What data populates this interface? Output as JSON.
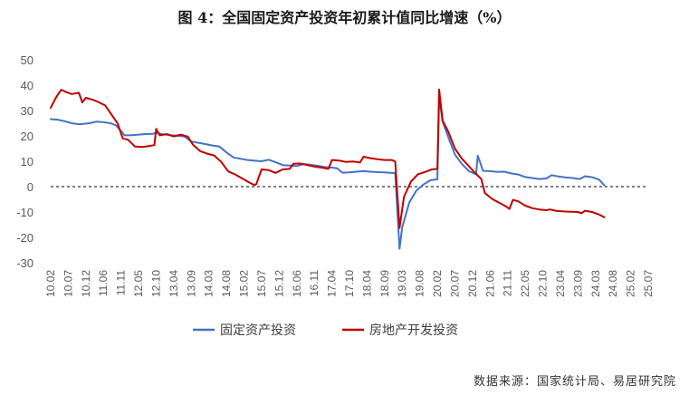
{
  "chart_data": {
    "type": "line",
    "title": "图 4：全国固定资产投资年初累计值同比增速（%）",
    "source": "数据来源：国家统计局、易居研究院",
    "ylim": [
      -30,
      50
    ],
    "yticks": [
      "50",
      "40",
      "30",
      "20",
      "10",
      "0",
      "-10",
      "-20",
      "-30"
    ],
    "xticks": [
      "10.02",
      "10.07",
      "10.12",
      "11.06",
      "11.11",
      "12.05",
      "12.10",
      "13.04",
      "13.09",
      "14.03",
      "14.08",
      "15.02",
      "15.07",
      "15.12",
      "16.06",
      "16.11",
      "17.04",
      "17.10",
      "18.04",
      "18.09",
      "19.03",
      "19.08",
      "20.02",
      "20.07",
      "20.12",
      "21.06",
      "21.11",
      "22.05",
      "22.10",
      "23.04",
      "23.09",
      "24.03",
      "24.08",
      "25.02",
      "25.07"
    ],
    "zero_line": "dashed",
    "legend_position": "bottom",
    "series": [
      {
        "name": "固定资产投资",
        "color": "#4472c4",
        "points": [
          [
            0,
            26.6
          ],
          [
            0.4,
            26.4
          ],
          [
            0.8,
            25.8
          ],
          [
            1.2,
            25.0
          ],
          [
            1.6,
            24.6
          ],
          [
            1.9,
            24.8
          ],
          [
            2.2,
            25.0
          ],
          [
            2.6,
            25.6
          ],
          [
            3.0,
            25.4
          ],
          [
            3.4,
            25.0
          ],
          [
            3.7,
            24.2
          ],
          [
            4.0,
            22.0
          ],
          [
            4.2,
            20.2
          ],
          [
            4.6,
            20.3
          ],
          [
            5.0,
            20.5
          ],
          [
            5.4,
            20.7
          ],
          [
            5.8,
            20.8
          ],
          [
            6.0,
            21.2
          ],
          [
            6.4,
            20.6
          ],
          [
            6.8,
            20.3
          ],
          [
            7.2,
            20.1
          ],
          [
            7.6,
            19.8
          ],
          [
            8.0,
            17.8
          ],
          [
            8.4,
            17.3
          ],
          [
            8.8,
            16.8
          ],
          [
            9.2,
            16.2
          ],
          [
            9.6,
            15.8
          ],
          [
            10.0,
            13.5
          ],
          [
            10.4,
            11.5
          ],
          [
            10.8,
            11.0
          ],
          [
            11.2,
            10.5
          ],
          [
            11.6,
            10.2
          ],
          [
            12.0,
            10.0
          ],
          [
            12.4,
            10.6
          ],
          [
            12.8,
            9.6
          ],
          [
            13.2,
            8.5
          ],
          [
            13.6,
            8.3
          ],
          [
            14.0,
            8.1
          ],
          [
            14.4,
            8.9
          ],
          [
            14.8,
            8.6
          ],
          [
            15.2,
            8.2
          ],
          [
            15.6,
            7.7
          ],
          [
            16.0,
            7.5
          ],
          [
            16.3,
            7.2
          ],
          [
            16.6,
            5.5
          ],
          [
            17.0,
            5.6
          ],
          [
            17.4,
            5.9
          ],
          [
            17.8,
            6.1
          ],
          [
            18.2,
            5.9
          ],
          [
            18.6,
            5.7
          ],
          [
            19.0,
            5.6
          ],
          [
            19.4,
            5.4
          ],
          [
            19.6,
            5.4
          ],
          [
            19.85,
            -24.5
          ],
          [
            20.0,
            -16.1
          ],
          [
            20.4,
            -6.3
          ],
          [
            20.8,
            -1.6
          ],
          [
            21.2,
            0.8
          ],
          [
            21.6,
            2.5
          ],
          [
            22.0,
            2.9
          ],
          [
            22.1,
            35.0
          ],
          [
            22.3,
            25.6
          ],
          [
            22.6,
            19.9
          ],
          [
            23.0,
            12.6
          ],
          [
            23.4,
            8.9
          ],
          [
            23.8,
            6.1
          ],
          [
            24.2,
            4.9
          ],
          [
            24.3,
            12.2
          ],
          [
            24.6,
            6.2
          ],
          [
            25.0,
            6.1
          ],
          [
            25.4,
            5.8
          ],
          [
            25.8,
            5.9
          ],
          [
            26.2,
            5.2
          ],
          [
            26.6,
            4.8
          ],
          [
            27.0,
            3.8
          ],
          [
            27.4,
            3.4
          ],
          [
            27.8,
            3.0
          ],
          [
            28.2,
            3.2
          ],
          [
            28.5,
            4.5
          ],
          [
            28.9,
            4.0
          ],
          [
            29.3,
            3.6
          ],
          [
            29.7,
            3.4
          ],
          [
            30.1,
            3.0
          ],
          [
            30.4,
            4.1
          ],
          [
            30.8,
            3.7
          ],
          [
            31.2,
            2.8
          ],
          [
            31.5,
            0.5
          ]
        ]
      },
      {
        "name": "房地产开发投资",
        "color": "#c00000",
        "points": [
          [
            0,
            31.1
          ],
          [
            0.3,
            35.1
          ],
          [
            0.6,
            38.2
          ],
          [
            0.9,
            37.2
          ],
          [
            1.2,
            36.5
          ],
          [
            1.6,
            37.0
          ],
          [
            1.8,
            33.2
          ],
          [
            2.0,
            35.0
          ],
          [
            2.4,
            34.2
          ],
          [
            2.7,
            33.4
          ],
          [
            3.1,
            32.0
          ],
          [
            3.5,
            28.0
          ],
          [
            3.8,
            25.0
          ],
          [
            4.1,
            19.0
          ],
          [
            4.4,
            18.5
          ],
          [
            4.8,
            15.8
          ],
          [
            5.2,
            15.6
          ],
          [
            5.6,
            16.0
          ],
          [
            5.9,
            16.4
          ],
          [
            6.0,
            22.8
          ],
          [
            6.2,
            20.2
          ],
          [
            6.6,
            20.7
          ],
          [
            7.0,
            19.8
          ],
          [
            7.4,
            20.5
          ],
          [
            7.8,
            19.7
          ],
          [
            8.1,
            16.5
          ],
          [
            8.5,
            14.0
          ],
          [
            8.9,
            13.0
          ],
          [
            9.3,
            12.3
          ],
          [
            9.7,
            9.8
          ],
          [
            10.1,
            6.0
          ],
          [
            10.5,
            4.8
          ],
          [
            10.9,
            3.2
          ],
          [
            11.3,
            1.6
          ],
          [
            11.6,
            0.6
          ],
          [
            11.7,
            1.0
          ],
          [
            12.0,
            6.8
          ],
          [
            12.4,
            6.5
          ],
          [
            12.8,
            5.4
          ],
          [
            13.2,
            6.8
          ],
          [
            13.6,
            7.0
          ],
          [
            13.8,
            9.0
          ],
          [
            14.2,
            9.1
          ],
          [
            14.6,
            8.5
          ],
          [
            15.0,
            7.9
          ],
          [
            15.4,
            7.5
          ],
          [
            15.8,
            7.0
          ],
          [
            16.0,
            10.5
          ],
          [
            16.4,
            10.3
          ],
          [
            16.8,
            9.7
          ],
          [
            17.2,
            9.9
          ],
          [
            17.6,
            9.5
          ],
          [
            17.8,
            11.8
          ],
          [
            18.2,
            11.2
          ],
          [
            18.6,
            10.8
          ],
          [
            19.0,
            10.5
          ],
          [
            19.4,
            10.5
          ],
          [
            19.6,
            9.9
          ],
          [
            19.85,
            -16.3
          ],
          [
            20.1,
            -4.0
          ],
          [
            20.5,
            2.0
          ],
          [
            20.9,
            4.9
          ],
          [
            21.3,
            5.8
          ],
          [
            21.7,
            6.8
          ],
          [
            22.0,
            7.0
          ],
          [
            22.1,
            38.3
          ],
          [
            22.3,
            26.0
          ],
          [
            22.6,
            22.0
          ],
          [
            23.0,
            15.0
          ],
          [
            23.4,
            11.0
          ],
          [
            23.8,
            8.0
          ],
          [
            24.2,
            5.0
          ],
          [
            24.5,
            3.0
          ],
          [
            24.7,
            -2.5
          ],
          [
            25.1,
            -4.8
          ],
          [
            25.5,
            -6.3
          ],
          [
            25.9,
            -7.8
          ],
          [
            26.1,
            -8.8
          ],
          [
            26.3,
            -5.2
          ],
          [
            26.6,
            -5.8
          ],
          [
            27.0,
            -7.5
          ],
          [
            27.4,
            -8.5
          ],
          [
            27.8,
            -9.0
          ],
          [
            28.2,
            -9.3
          ],
          [
            28.4,
            -9.0
          ],
          [
            28.8,
            -9.6
          ],
          [
            29.2,
            -9.8
          ],
          [
            29.6,
            -9.9
          ],
          [
            30.0,
            -10.0
          ],
          [
            30.2,
            -10.5
          ],
          [
            30.4,
            -9.5
          ],
          [
            30.8,
            -10.0
          ],
          [
            31.2,
            -11.0
          ],
          [
            31.5,
            -12.1
          ]
        ]
      }
    ]
  }
}
